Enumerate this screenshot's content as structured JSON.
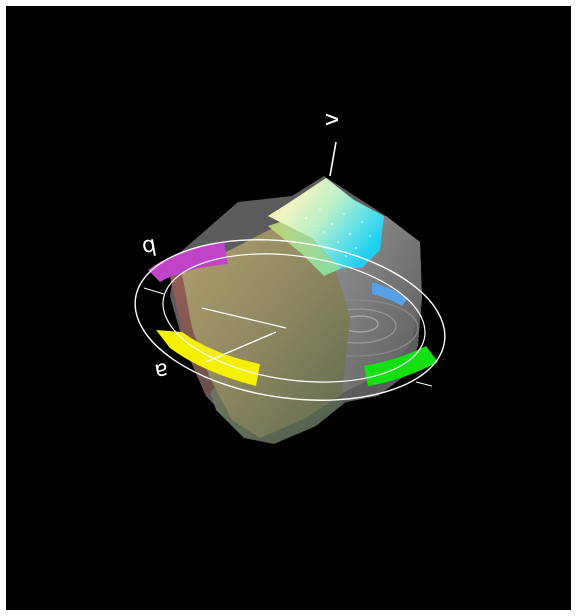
{
  "colors": {
    "background": "#000000",
    "frame": "#ffffff",
    "axes": "#ffffff",
    "ring_magenta": "#c044c8",
    "ring_yellow": "#f4f000",
    "ring_green": "#12e012",
    "ring_blue": "#5aa0e8",
    "solid_gray": "#6e6e6e",
    "solid_olive": "#8a8a60"
  },
  "axes": {
    "vertical_label": "v",
    "axis_label_a": "a",
    "axis_label_b": "b"
  }
}
